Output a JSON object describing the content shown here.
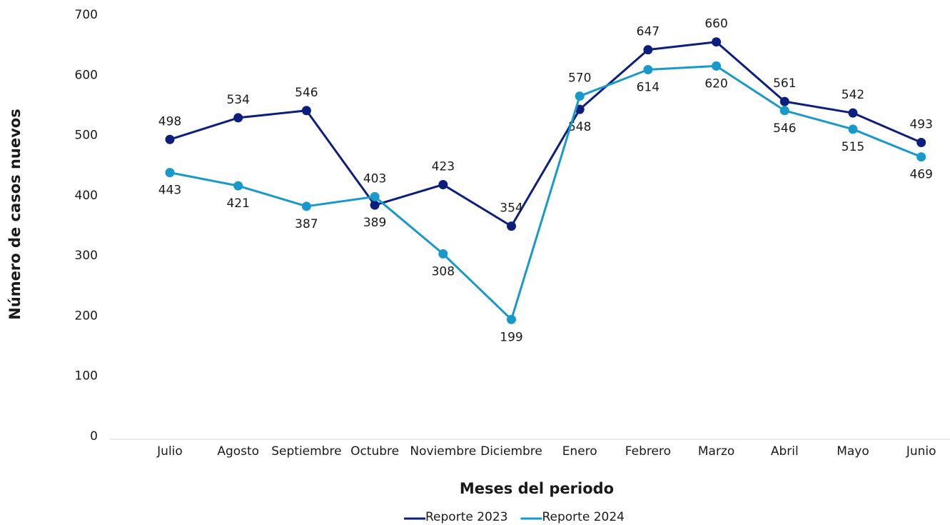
{
  "chart_data": {
    "type": "line",
    "y_label": "Número de casos nuevos",
    "x_label": "Meses del periodo",
    "categories": [
      "Julio",
      "Agosto",
      "Septiembre",
      "Octubre",
      "Noviembre",
      "Diciembre",
      "Enero",
      "Febrero",
      "Marzo",
      "Abril",
      "Mayo",
      "Junio"
    ],
    "series": [
      {
        "name": "Reporte 2023",
        "color": "#0d1f7e",
        "values": [
          498,
          534,
          546,
          389,
          423,
          354,
          548,
          647,
          660,
          561,
          542,
          493
        ]
      },
      {
        "name": "Reporte 2024",
        "color": "#1799cc",
        "values": [
          443,
          421,
          387,
          403,
          308,
          199,
          570,
          614,
          620,
          546,
          515,
          469
        ]
      }
    ],
    "ylim": [
      0,
      700
    ],
    "yticks": [
      0,
      100,
      200,
      300,
      400,
      500,
      600,
      700
    ],
    "grid": false,
    "legend": "bottom"
  }
}
